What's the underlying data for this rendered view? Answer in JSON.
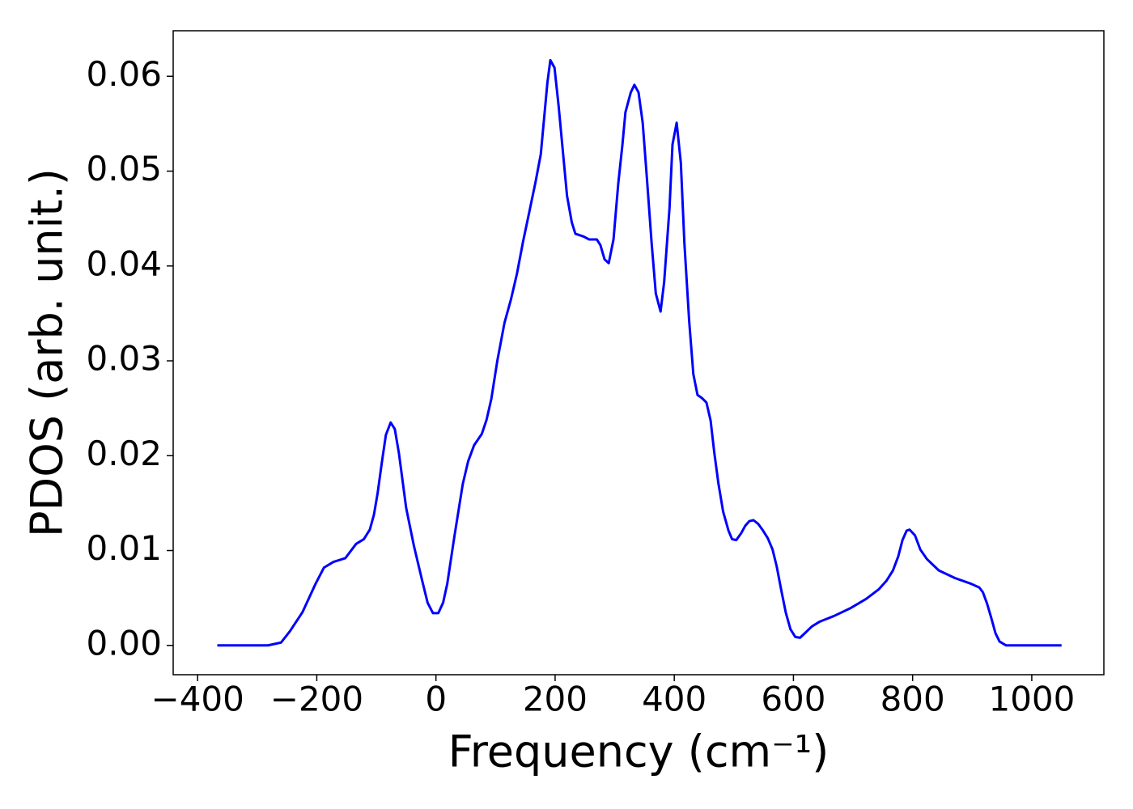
{
  "chart_data": {
    "type": "line",
    "xlabel": "Frequency (cm⁻¹)",
    "ylabel": "PDOS (arb. unit.)",
    "xlim": [
      -441,
      1121
    ],
    "ylim": [
      -0.00309,
      0.0648
    ],
    "xticks": [
      {
        "value": -400,
        "label": "−400"
      },
      {
        "value": -200,
        "label": "−200"
      },
      0,
      200,
      400,
      600,
      800,
      1000
    ],
    "yticks": [
      {
        "value": 0,
        "label": "0.00"
      },
      0.01,
      0.02,
      0.03,
      0.04,
      0.05,
      0.06
    ],
    "series": [
      {
        "color": "#0000ff",
        "x": [
          -367,
          -282,
          -260,
          -245,
          -224,
          -202,
          -188,
          -172,
          -152,
          -134,
          -121,
          -111,
          -104,
          -98,
          -91,
          -84,
          -76,
          -69,
          -62,
          -50,
          -37,
          -23,
          -14,
          -5,
          4,
          12,
          19,
          31,
          45,
          54,
          64,
          77,
          85,
          93,
          103,
          115,
          126,
          136,
          146,
          157,
          167,
          176,
          187,
          192,
          199,
          206,
          220,
          228,
          234,
          248,
          257,
          270,
          276,
          283,
          290,
          298,
          306,
          313,
          318,
          327,
          333,
          340,
          347,
          354,
          362,
          369,
          377,
          383,
          392,
          397,
          404,
          411,
          417,
          425,
          432,
          439,
          446,
          454,
          461,
          467,
          474,
          482,
          491,
          497,
          504,
          512,
          519,
          526,
          533,
          541,
          549,
          557,
          565,
          572,
          579,
          587,
          595,
          603,
          611,
          621,
          631,
          644,
          668,
          695,
          722,
          743,
          756,
          767,
          776,
          783,
          790,
          795,
          804,
          813,
          824,
          844,
          871,
          898,
          912,
          918,
          925,
          932,
          939,
          946,
          957,
          1050
        ],
        "values": [
          0,
          0,
          0.0003,
          0.0015,
          0.0035,
          0.0065,
          0.0082,
          0.0088,
          0.0092,
          0.0107,
          0.0112,
          0.0122,
          0.0138,
          0.016,
          0.0192,
          0.0222,
          0.0235,
          0.0228,
          0.0202,
          0.0145,
          0.0105,
          0.0068,
          0.0045,
          0.0034,
          0.0034,
          0.0045,
          0.0065,
          0.0115,
          0.017,
          0.0194,
          0.0211,
          0.0223,
          0.0238,
          0.026,
          0.03,
          0.034,
          0.0365,
          0.0392,
          0.0425,
          0.0458,
          0.0488,
          0.0518,
          0.0593,
          0.0617,
          0.0609,
          0.0568,
          0.0474,
          0.0446,
          0.0434,
          0.0431,
          0.0428,
          0.0428,
          0.0422,
          0.0407,
          0.0403,
          0.0428,
          0.0487,
          0.0528,
          0.0562,
          0.0583,
          0.0591,
          0.0583,
          0.0551,
          0.0493,
          0.0424,
          0.0371,
          0.0352,
          0.0383,
          0.0461,
          0.0528,
          0.0551,
          0.0509,
          0.0424,
          0.0342,
          0.0286,
          0.0264,
          0.0261,
          0.0256,
          0.0237,
          0.0204,
          0.0171,
          0.0141,
          0.0121,
          0.0112,
          0.0111,
          0.0118,
          0.0126,
          0.0131,
          0.0132,
          0.0128,
          0.0121,
          0.0113,
          0.0101,
          0.0083,
          0.006,
          0.0035,
          0.0017,
          0.0009,
          0.0008,
          0.0014,
          0.002,
          0.0025,
          0.0031,
          0.0039,
          0.0049,
          0.0059,
          0.0068,
          0.0079,
          0.0094,
          0.0111,
          0.0121,
          0.0122,
          0.0116,
          0.0101,
          0.0091,
          0.0079,
          0.0071,
          0.0065,
          0.0061,
          0.0056,
          0.0044,
          0.0029,
          0.0013,
          0.0004,
          0,
          0
        ]
      }
    ]
  }
}
